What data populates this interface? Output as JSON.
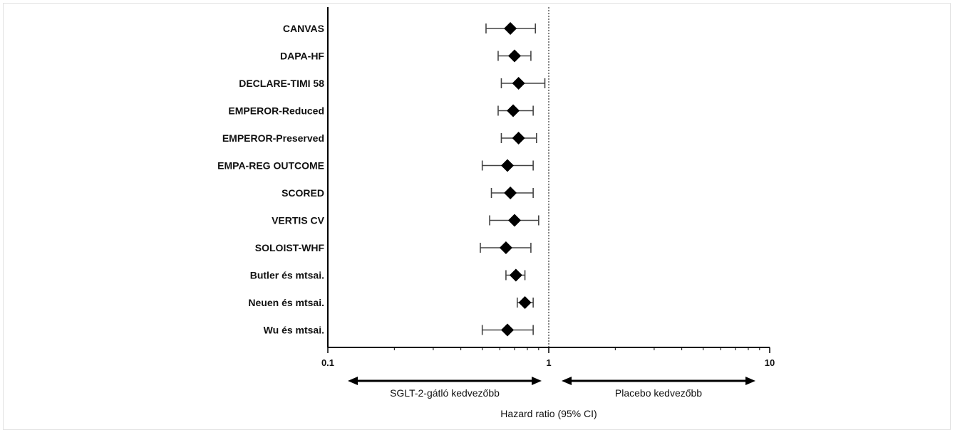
{
  "chart_data": {
    "type": "forest",
    "xscale": "log",
    "xlim": [
      0.1,
      10
    ],
    "xticks": [
      "0.1",
      "1",
      "10"
    ],
    "reference_line": 1,
    "xlabel": "Hazard ratio (95% CI)",
    "favours_left": "SGLT-2-gátló kedvezőbb",
    "favours_right": "Placebo kedvezőbb",
    "studies": [
      {
        "name": "CANVAS",
        "hr": 0.67,
        "lower": 0.52,
        "upper": 0.87
      },
      {
        "name": "DAPA-HF",
        "hr": 0.7,
        "lower": 0.59,
        "upper": 0.83
      },
      {
        "name": "DECLARE-TIMI 58",
        "hr": 0.73,
        "lower": 0.61,
        "upper": 0.96
      },
      {
        "name": "EMPEROR-Reduced",
        "hr": 0.69,
        "lower": 0.59,
        "upper": 0.85
      },
      {
        "name": "EMPEROR-Preserved",
        "hr": 0.73,
        "lower": 0.61,
        "upper": 0.88
      },
      {
        "name": "EMPA-REG OUTCOME",
        "hr": 0.65,
        "lower": 0.5,
        "upper": 0.85
      },
      {
        "name": "SCORED",
        "hr": 0.67,
        "lower": 0.55,
        "upper": 0.85
      },
      {
        "name": "VERTIS CV",
        "hr": 0.7,
        "lower": 0.54,
        "upper": 0.9
      },
      {
        "name": "SOLOIST-WHF",
        "hr": 0.64,
        "lower": 0.49,
        "upper": 0.83
      },
      {
        "name": "Butler és mtsai.",
        "hr": 0.71,
        "lower": 0.64,
        "upper": 0.78
      },
      {
        "name": "Neuen és mtsai.",
        "hr": 0.78,
        "lower": 0.72,
        "upper": 0.85
      },
      {
        "name": "Wu és mtsai.",
        "hr": 0.65,
        "lower": 0.5,
        "upper": 0.85
      }
    ],
    "marker": "diamond",
    "grid": false,
    "colors": {
      "marker": "#000000",
      "whisker": "#444444",
      "axis": "#000000",
      "reference": "#333333"
    }
  }
}
